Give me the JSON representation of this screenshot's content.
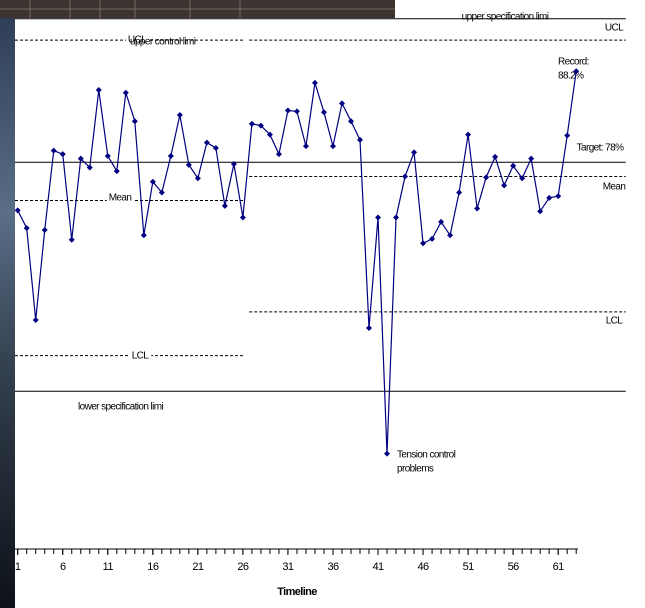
{
  "chart_data": {
    "type": "line",
    "x_label": "Timeline",
    "x": [
      1,
      2,
      3,
      4,
      5,
      6,
      7,
      8,
      9,
      10,
      11,
      12,
      13,
      14,
      15,
      16,
      17,
      18,
      19,
      20,
      21,
      22,
      23,
      24,
      25,
      26,
      27,
      28,
      29,
      30,
      31,
      32,
      33,
      34,
      35,
      36,
      37,
      38,
      39,
      40,
      41,
      42,
      43,
      44,
      45,
      46,
      47,
      48,
      49,
      50,
      51,
      52,
      53,
      54,
      55,
      56,
      57,
      58,
      59,
      60,
      61,
      62,
      63
    ],
    "values": [
      72.6,
      70.6,
      60.3,
      70.4,
      79.3,
      78.9,
      69.3,
      78.4,
      77.4,
      86.1,
      78.7,
      77.0,
      85.8,
      82.6,
      69.8,
      75.8,
      74.6,
      78.7,
      83.3,
      77.7,
      76.2,
      80.2,
      79.6,
      73.1,
      77.8,
      71.8,
      82.3,
      82.1,
      81.1,
      78.9,
      83.8,
      83.7,
      79.8,
      86.9,
      83.6,
      79.8,
      84.6,
      82.6,
      80.5,
      59.4,
      71.8,
      45.3,
      71.8,
      76.4,
      79.1,
      68.9,
      69.4,
      71.3,
      69.8,
      74.6,
      81.1,
      72.8,
      76.3,
      78.6,
      75.4,
      77.6,
      76.2,
      78.4,
      72.5,
      74.0,
      74.2,
      81.0,
      88.2
    ],
    "color": "#000080",
    "xlim": [
      0.7,
      63.2
    ],
    "ylim": [
      34.6,
      96.2
    ],
    "xticks": [
      1,
      6,
      11,
      16,
      21,
      26,
      31,
      36,
      41,
      46,
      51,
      56,
      61
    ],
    "minor_xticks": [
      1,
      2,
      3,
      4,
      5,
      6,
      7,
      8,
      9,
      10,
      11,
      12,
      13,
      14,
      15,
      16,
      17,
      18,
      19,
      20,
      21,
      22,
      23,
      24,
      25,
      26,
      27,
      28,
      29,
      30,
      31,
      32,
      33,
      34,
      35,
      36,
      37,
      38,
      39,
      40,
      41,
      42,
      43,
      44,
      45,
      46,
      47,
      48,
      49,
      50,
      51,
      52,
      53,
      54,
      55,
      56,
      57,
      58,
      59,
      60,
      61,
      62,
      63
    ],
    "lines": [
      {
        "label": "upper specification limi",
        "value": 94.1,
        "x": [
          0.7,
          68.5
        ],
        "style": "solid"
      },
      {
        "label": "UCL",
        "value": 91.7,
        "x": [
          0.7,
          26.2
        ],
        "style": "dashed"
      },
      {
        "label": "UCL",
        "value": 91.7,
        "x": [
          26.7,
          68.5
        ],
        "style": "dashed"
      },
      {
        "label": "Target: 78%",
        "value": 78,
        "x": [
          0.7,
          68.5
        ],
        "style": "solid"
      },
      {
        "label": "Mean",
        "value": 73.7,
        "x": [
          0.7,
          26.2
        ],
        "style": "dashed"
      },
      {
        "label": "Mean",
        "value": 76.4,
        "x": [
          26.7,
          68.5
        ],
        "style": "dashed"
      },
      {
        "label": "LCL",
        "value": 56.3,
        "x": [
          0.7,
          26.2
        ],
        "style": "dashed"
      },
      {
        "label": "LCL",
        "value": 61.2,
        "x": [
          26.7,
          68.5
        ],
        "style": "dashed"
      },
      {
        "label": "lower specification limi",
        "value": 52.3,
        "x": [
          0.7,
          68.5
        ],
        "style": "solid"
      }
    ],
    "annotations": [
      {
        "lines": [
          "upper control limi"
        ]
      },
      {
        "lines": [
          "Tension control",
          "problems"
        ]
      },
      {
        "lines": [
          "Record:",
          "88.2%"
        ]
      }
    ]
  }
}
